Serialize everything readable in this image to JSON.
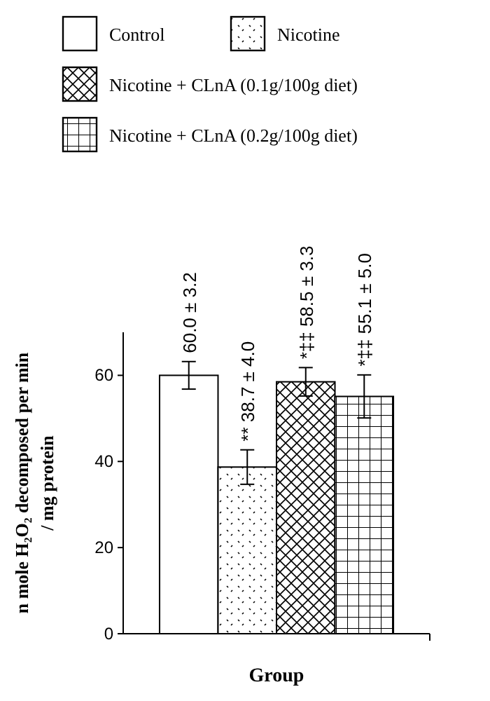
{
  "chart_data": {
    "type": "bar",
    "xlabel": "Group",
    "ylabel": "n mole H₂O₂ decomposed per min / mg protein",
    "categories": [
      null
    ],
    "ylim": [
      0,
      70
    ],
    "yticks": [
      0,
      20,
      40,
      60
    ],
    "legend": "top",
    "grid": false,
    "series": [
      {
        "name": "Control",
        "color": "#000000",
        "values": [
          60.0
        ],
        "errors": [
          3.2
        ],
        "value_labels": [
          "60.0 ± 3.2"
        ]
      },
      {
        "name": "Nicotine",
        "color": "#000000",
        "values": [
          38.7
        ],
        "errors": [
          4.0
        ],
        "value_labels": [
          "** 38.7 ± 4.0"
        ]
      },
      {
        "name": "Nicotine + CLnA (0.1g/100g diet)",
        "color": "#000000",
        "values": [
          58.5
        ],
        "errors": [
          3.3
        ],
        "value_labels": [
          "*‡‡ 58.5 ± 3.3"
        ]
      },
      {
        "name": "Nicotine + CLnA (0.2g/100g diet)",
        "color": "#000000",
        "values": [
          55.1
        ],
        "errors": [
          5.0
        ],
        "value_labels": [
          "*‡‡ 55.1 ± 5.0"
        ]
      }
    ]
  }
}
